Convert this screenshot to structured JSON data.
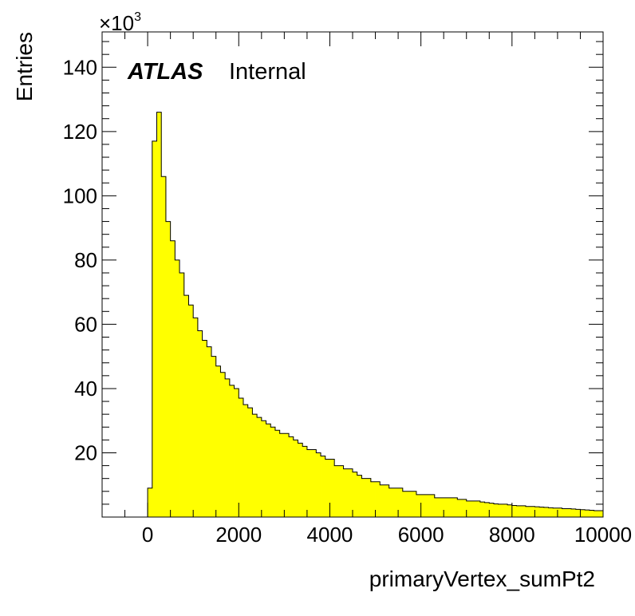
{
  "chart_data": {
    "type": "bar",
    "title": "",
    "xlabel": "primaryVertex_sumPt2",
    "ylabel": "Entries",
    "y_multiplier_label": "×10",
    "y_multiplier_exponent": "3",
    "xlim": [
      -1000,
      10000
    ],
    "ylim": [
      0,
      151
    ],
    "x_ticks": [
      0,
      2000,
      4000,
      6000,
      8000,
      10000
    ],
    "y_ticks": [
      20,
      40,
      60,
      80,
      100,
      120,
      140
    ],
    "bin_width": 100,
    "bin_start": 0,
    "series": [
      {
        "color": "#ffff00",
        "values": [
          9,
          117,
          126,
          106,
          92,
          86,
          80,
          76,
          69,
          66,
          62,
          58,
          55,
          53,
          50,
          47,
          45,
          43,
          41,
          40,
          37,
          35,
          34,
          32,
          31,
          30,
          29,
          28,
          27,
          26,
          26,
          25,
          24,
          23,
          22,
          21,
          21,
          20,
          19,
          18,
          18,
          16,
          16,
          15,
          15,
          14,
          13,
          12,
          12,
          11,
          11,
          10,
          10,
          9,
          9,
          9,
          8,
          8,
          8,
          7,
          7,
          7,
          7,
          6,
          6,
          6,
          6,
          6,
          5.5,
          5.5,
          5,
          5,
          5,
          4.7,
          4.5,
          4.3,
          4.1,
          4,
          4,
          3.8,
          3.6,
          3.5,
          3.5,
          3.3,
          3.3,
          3.2,
          3.1,
          3.0,
          2.9,
          2.8,
          2.8,
          2.6,
          2.6,
          2.5,
          2.4,
          2.3,
          2.2,
          2.1,
          2.0,
          2.0
        ]
      }
    ],
    "annotations": {
      "experiment": "ATLAS",
      "status": "Internal"
    }
  }
}
